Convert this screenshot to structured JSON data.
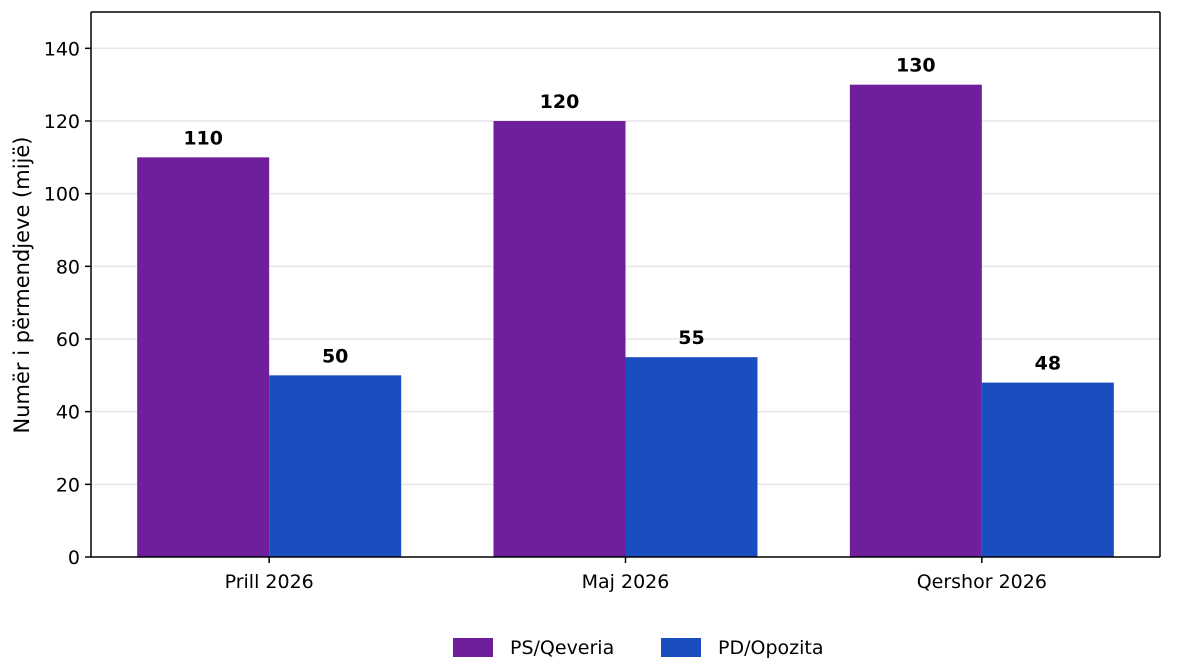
{
  "chart_data": {
    "type": "bar",
    "categories": [
      "Prill 2026",
      "Maj 2026",
      "Qershor 2026"
    ],
    "series": [
      {
        "name": "PS/Qeveria",
        "values": [
          110,
          120,
          130
        ],
        "color": "#6f1f9c"
      },
      {
        "name": "PD/Opozita",
        "values": [
          50,
          55,
          48
        ],
        "color": "#1a4ec0"
      }
    ],
    "ylabel": "Numër i përmendjeve (mijë)",
    "xlabel": "",
    "title": "",
    "ylim": [
      0,
      150
    ],
    "yticks": [
      0,
      20,
      40,
      60,
      80,
      100,
      120,
      140
    ],
    "grid": "horizontal",
    "legend_position": "bottom-center",
    "show_data_labels": true
  }
}
